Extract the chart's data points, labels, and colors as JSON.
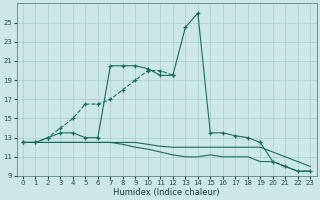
{
  "xlabel": "Humidex (Indice chaleur)",
  "background_color": "#cce8e4",
  "grid_color": "#aacccc",
  "line_color": "#1a6b5a",
  "xlim": [
    -0.5,
    23.5
  ],
  "ylim": [
    9,
    27
  ],
  "yticks": [
    9,
    11,
    13,
    15,
    17,
    19,
    21,
    23,
    25
  ],
  "xticks": [
    0,
    1,
    2,
    3,
    4,
    5,
    6,
    7,
    8,
    9,
    10,
    11,
    12,
    13,
    14,
    15,
    16,
    17,
    18,
    19,
    20,
    21,
    22,
    23
  ],
  "series1_x": [
    0,
    1,
    2,
    3,
    4,
    5,
    6,
    7,
    8,
    9,
    10,
    11,
    12,
    13,
    14,
    15,
    16,
    17,
    18,
    19,
    20,
    21,
    22,
    23
  ],
  "series1_y": [
    12.5,
    12.5,
    12.5,
    12.5,
    12.5,
    12.5,
    12.5,
    12.5,
    12.5,
    12.5,
    12.3,
    12.1,
    12.0,
    12.0,
    12.0,
    12.0,
    12.0,
    12.0,
    12.0,
    12.0,
    11.5,
    11.0,
    10.5,
    10.0
  ],
  "series2_x": [
    0,
    1,
    2,
    3,
    4,
    5,
    6,
    7,
    8,
    9,
    10,
    11,
    12,
    13,
    14,
    15,
    16,
    17,
    18,
    19,
    20,
    21,
    22,
    23
  ],
  "series2_y": [
    12.5,
    12.5,
    12.5,
    12.5,
    12.5,
    12.5,
    12.5,
    12.5,
    12.3,
    12.0,
    11.8,
    11.5,
    11.2,
    11.0,
    11.0,
    11.2,
    11.0,
    11.0,
    11.0,
    10.5,
    10.5,
    10.0,
    9.5,
    9.5
  ],
  "series3_x": [
    0,
    1,
    2,
    3,
    4,
    5,
    6,
    7,
    8,
    9,
    10,
    11,
    12,
    13,
    14,
    15,
    16,
    17,
    18,
    19,
    20,
    21,
    22,
    23
  ],
  "series3_y": [
    12.5,
    12.5,
    13.0,
    13.5,
    13.5,
    13.0,
    13.0,
    20.5,
    20.5,
    20.5,
    20.2,
    19.5,
    19.5,
    24.5,
    26.0,
    13.5,
    13.5,
    13.2,
    13.0,
    12.5,
    10.5,
    10.0,
    9.5,
    9.5
  ],
  "series4_x": [
    0,
    1,
    2,
    3,
    4,
    5,
    6,
    7,
    8,
    9,
    10,
    11,
    12
  ],
  "series4_y": [
    12.5,
    12.5,
    13.0,
    14.0,
    15.0,
    16.5,
    16.5,
    17.0,
    18.0,
    19.0,
    20.0,
    20.0,
    19.5
  ]
}
